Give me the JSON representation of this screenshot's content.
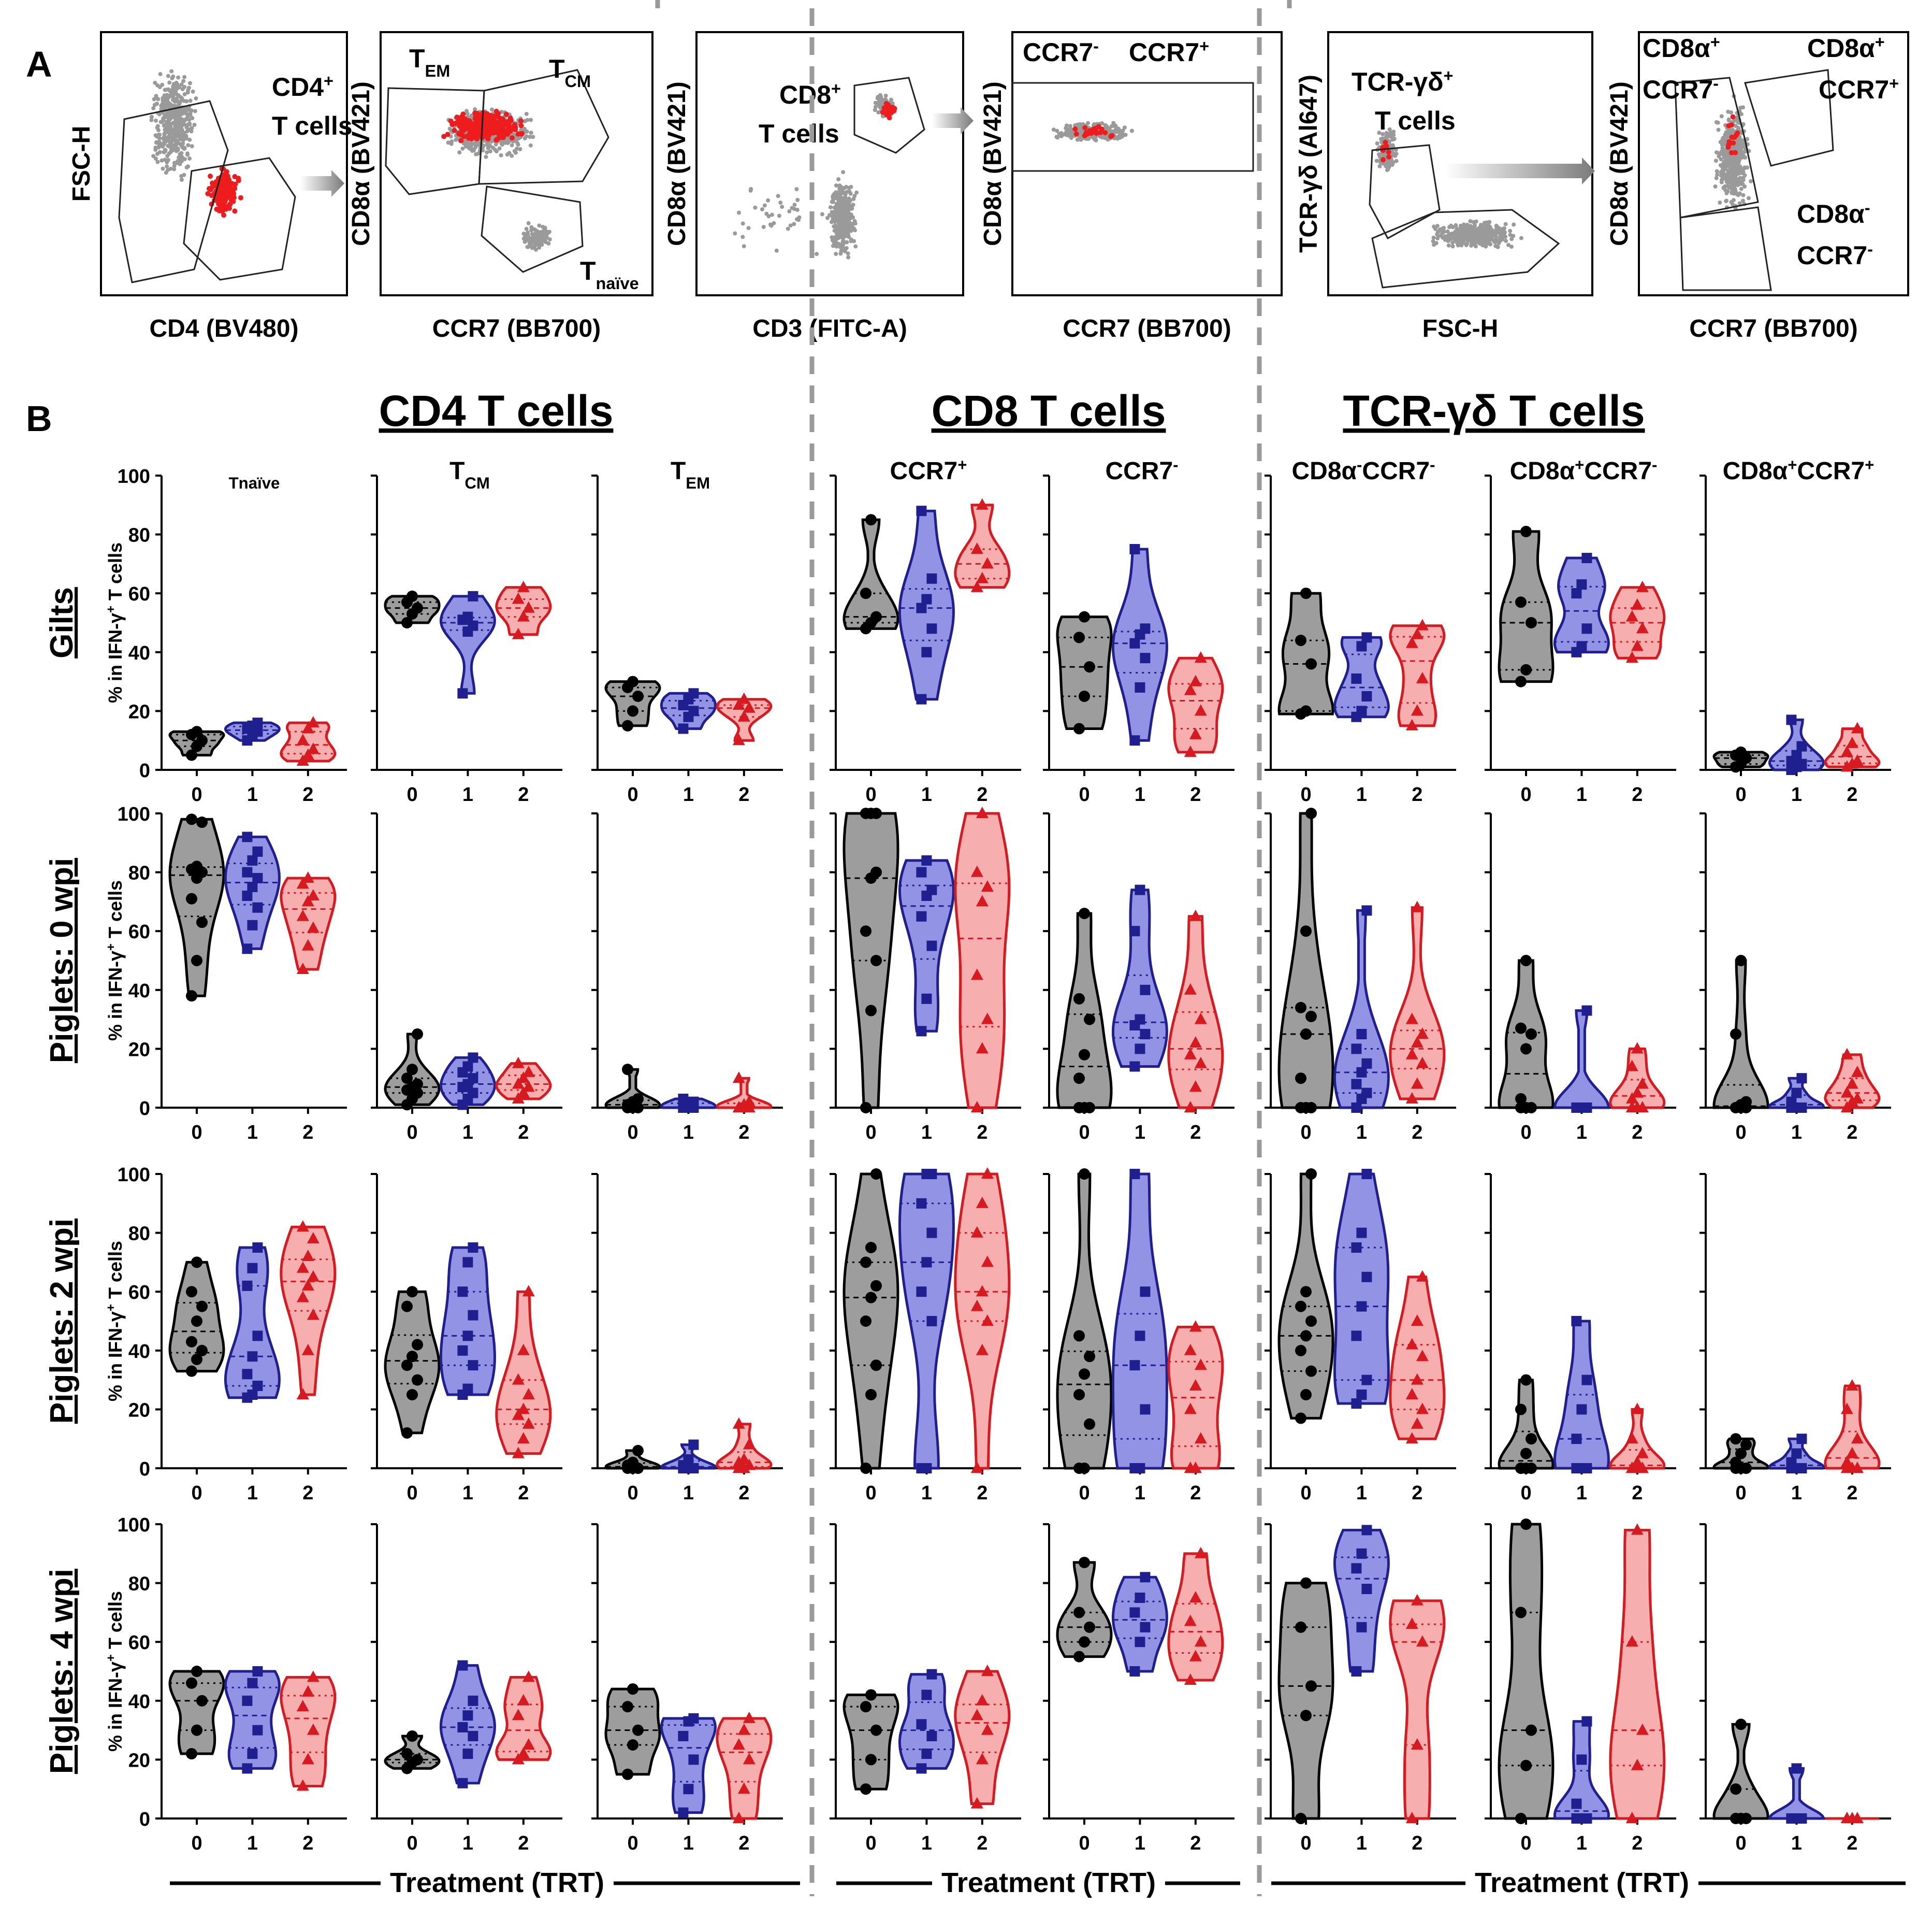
{
  "figure": {
    "panel_a_label": "A",
    "panel_b_label": "B"
  },
  "panel_a": [
    {
      "xlabel": "CD4 (BV480)",
      "ylabel": "FSC-H",
      "gate_labels": [
        {
          "main": "CD4",
          "sup": "+"
        },
        {
          "main": "T cells",
          "sup": ""
        }
      ]
    },
    {
      "xlabel": "CCR7 (BB700)",
      "ylabel": "CD8α (BV421)",
      "gate_labels": [
        {
          "main": "T",
          "sub": "EM"
        },
        {
          "main": "T",
          "sub": "CM"
        },
        {
          "main": "T",
          "sub": "naïve"
        }
      ]
    },
    {
      "xlabel": "CD3 (FITC-A)",
      "ylabel": "CD8α (BV421)",
      "gate_labels": [
        {
          "main": "CD8",
          "sup": "+"
        },
        {
          "main": "T cells",
          "sup": ""
        }
      ]
    },
    {
      "xlabel": "CCR7 (BB700)",
      "ylabel": "CD8α (BV421)",
      "gate_labels": [
        {
          "main": "CCR7",
          "sup": "-"
        },
        {
          "main": "CCR7",
          "sup": "+"
        }
      ]
    },
    {
      "xlabel": "FSC-H",
      "ylabel": "TCR-γδ (Al647)",
      "gate_labels": [
        {
          "main": "TCR-γδ",
          "sup": "+"
        },
        {
          "main": "T cells",
          "sup": ""
        }
      ]
    },
    {
      "xlabel": "CCR7 (BB700)",
      "ylabel": "CD8α (BV421)",
      "gate_labels": [
        {
          "main": "CD8α",
          "sup": "+"
        },
        {
          "main": "CCR7",
          "sup": "-"
        },
        {
          "main": "CD8α",
          "sup": "+"
        },
        {
          "main": "CCR7",
          "sup": "+"
        },
        {
          "main": "CD8α",
          "sup": "-"
        },
        {
          "main": "CCR7",
          "sup": "-"
        }
      ]
    }
  ],
  "panel_b": {
    "group_titles": [
      "CD4 T cells",
      "CD8 T cells",
      "TCR-γδ T cells"
    ],
    "column_titles": [
      [
        {
          "t": "T",
          "s": "sub"
        },
        {
          "t": "naïve",
          "s": "sub"
        }
      ],
      [
        {
          "t": "T",
          "s": ""
        },
        {
          "t": "CM",
          "s": "sub"
        }
      ],
      [
        {
          "t": "T",
          "s": ""
        },
        {
          "t": "EM",
          "s": "sub"
        }
      ],
      [
        {
          "t": "CCR7",
          "s": ""
        },
        {
          "t": "+",
          "s": "sup"
        }
      ],
      [
        {
          "t": "CCR7",
          "s": ""
        },
        {
          "t": "-",
          "s": "sup"
        }
      ],
      [
        {
          "t": "CD8α",
          "s": ""
        },
        {
          "t": "-",
          "s": "sup"
        },
        {
          "t": "CCR7",
          "s": ""
        },
        {
          "t": "-",
          "s": "sup"
        }
      ],
      [
        {
          "t": "CD8α",
          "s": ""
        },
        {
          "t": "+",
          "s": "sup"
        },
        {
          "t": "CCR7",
          "s": ""
        },
        {
          "t": "-",
          "s": "sup"
        }
      ],
      [
        {
          "t": "CD8α",
          "s": ""
        },
        {
          "t": "+",
          "s": "sup"
        },
        {
          "t": "CCR7",
          "s": ""
        },
        {
          "t": "+",
          "s": "sup"
        }
      ]
    ],
    "row_titles": [
      "Gilts",
      "Piglets: 0 wpi",
      "Piglets: 2 wpi",
      "Piglets: 4 wpi"
    ],
    "ylabel_parts": [
      "% in IFN-γ",
      "+",
      " T cells"
    ],
    "xlabel": "Treatment (TRT)"
  },
  "chart_data": {
    "type": "violin",
    "categories": [
      "0",
      "1",
      "2"
    ],
    "ylim": [
      0,
      100
    ],
    "yticks": [
      0,
      20,
      40,
      60,
      80,
      100
    ],
    "series_colors": {
      "0": "#000000",
      "1": "#1f1f8f",
      "2": "#d71920"
    },
    "fill_colors": {
      "0": "#8c8c8c",
      "1": "#8080e0",
      "2": "#f5a0a0"
    },
    "markers": {
      "0": "circle",
      "1": "square",
      "2": "triangle"
    },
    "rows": [
      {
        "title": "Gilts",
        "cells": [
          [
            [
              5,
              8,
              10,
              12,
              13
            ],
            [
              10,
              12,
              13,
              14,
              15,
              16
            ],
            [
              3,
              5,
              7,
              10,
              14,
              16
            ]
          ],
          [
            [
              50,
              53,
              55,
              57,
              59
            ],
            [
              26,
              47,
              49,
              51,
              52,
              59
            ],
            [
              46,
              52,
              55,
              58,
              62
            ]
          ],
          [
            [
              15,
              20,
              25,
              28,
              30
            ],
            [
              14,
              18,
              20,
              22,
              24,
              26
            ],
            [
              10,
              18,
              21,
              22,
              24
            ]
          ],
          [
            [
              48,
              50,
              52,
              60,
              85
            ],
            [
              24,
              40,
              48,
              55,
              58,
              65,
              88
            ],
            [
              62,
              65,
              70,
              75,
              90
            ]
          ],
          [
            [
              14,
              25,
              35,
              45,
              52
            ],
            [
              10,
              28,
              38,
              43,
              46,
              48,
              75
            ],
            [
              6,
              12,
              20,
              27,
              30,
              38
            ]
          ],
          [
            [
              19,
              20,
              36,
              44,
              60
            ],
            [
              18,
              20,
              25,
              31,
              42,
              45
            ],
            [
              15,
              20,
              31,
              43,
              46,
              49
            ]
          ],
          [
            [
              30,
              34,
              50,
              57,
              81
            ],
            [
              40,
              42,
              48,
              60,
              63,
              72
            ],
            [
              38,
              42,
              48,
              52,
              56,
              62
            ]
          ],
          [
            [
              1,
              2,
              4,
              5,
              6
            ],
            [
              0,
              1,
              2,
              3,
              5,
              8,
              17
            ],
            [
              1,
              2,
              3,
              6,
              9,
              14
            ]
          ]
        ]
      },
      {
        "title": "Piglets: 0 wpi",
        "cells": [
          [
            [
              38,
              50,
              63,
              71,
              78,
              80,
              81,
              82,
              97,
              98
            ],
            [
              54,
              62,
              68,
              72,
              75,
              78,
              80,
              84,
              87,
              92
            ],
            [
              47,
              55,
              61,
              65,
              70,
              72,
              76,
              78
            ]
          ],
          [
            [
              1,
              3,
              5,
              6,
              7,
              8,
              10,
              13,
              25
            ],
            [
              1,
              3,
              5,
              7,
              8,
              10,
              12,
              14,
              17
            ],
            [
              3,
              5,
              7,
              8,
              10,
              12,
              15
            ]
          ],
          [
            [
              0,
              0,
              0,
              1,
              2,
              3,
              13
            ],
            [
              0,
              0,
              0,
              0,
              1,
              2,
              3
            ],
            [
              0,
              0,
              0,
              0,
              1,
              2,
              10
            ]
          ],
          [
            [
              0,
              33,
              50,
              60,
              78,
              80,
              100,
              100,
              100
            ],
            [
              26,
              37,
              55,
              65,
              72,
              74,
              80,
              84
            ],
            [
              0,
              20,
              30,
              45,
              70,
              75,
              80,
              100
            ]
          ],
          [
            [
              0,
              0,
              0,
              10,
              18,
              30,
              37,
              66
            ],
            [
              14,
              20,
              25,
              28,
              30,
              40,
              60,
              74
            ],
            [
              0,
              7,
              15,
              18,
              22,
              30,
              40,
              65
            ]
          ],
          [
            [
              0,
              0,
              0,
              10,
              25,
              31,
              34,
              60,
              100
            ],
            [
              0,
              3,
              5,
              8,
              12,
              15,
              20,
              25,
              67
            ],
            [
              3,
              8,
              15,
              18,
              22,
              25,
              30,
              68
            ]
          ],
          [
            [
              0,
              0,
              0,
              3,
              20,
              25,
              27,
              50
            ],
            [
              0,
              0,
              0,
              0,
              0,
              33
            ],
            [
              0,
              0,
              0,
              3,
              5,
              8,
              14,
              20
            ]
          ],
          [
            [
              0,
              0,
              0,
              0,
              1,
              2,
              25,
              50
            ],
            [
              0,
              0,
              0,
              2,
              5,
              10
            ],
            [
              0,
              2,
              3,
              5,
              8,
              12,
              18
            ]
          ]
        ]
      },
      {
        "title": "Piglets: 2 wpi",
        "cells": [
          [
            [
              33,
              37,
              40,
              43,
              50,
              55,
              60,
              70
            ],
            [
              24,
              25,
              28,
              32,
              38,
              45,
              62,
              68,
              75
            ],
            [
              25,
              40,
              52,
              58,
              62,
              65,
              68,
              72,
              78,
              82
            ]
          ],
          [
            [
              12,
              25,
              30,
              35,
              38,
              42,
              55,
              60
            ],
            [
              25,
              27,
              35,
              40,
              45,
              52,
              60,
              70,
              75
            ],
            [
              5,
              10,
              15,
              18,
              20,
              25,
              30,
              40,
              60
            ]
          ],
          [
            [
              0,
              0,
              0,
              1,
              2,
              6
            ],
            [
              0,
              0,
              0,
              1,
              3,
              8
            ],
            [
              0,
              0,
              1,
              2,
              3,
              8,
              15
            ]
          ],
          [
            [
              0,
              25,
              35,
              50,
              58,
              62,
              70,
              75,
              100
            ],
            [
              0,
              0,
              50,
              60,
              70,
              80,
              90,
              100,
              100
            ],
            [
              0,
              40,
              50,
              55,
              60,
              70,
              80,
              90,
              100
            ]
          ],
          [
            [
              0,
              0,
              15,
              25,
              32,
              38,
              45,
              100
            ],
            [
              0,
              0,
              20,
              35,
              45,
              60,
              100
            ],
            [
              0,
              0,
              10,
              20,
              28,
              35,
              40,
              48
            ]
          ],
          [
            [
              17,
              25,
              33,
              40,
              45,
              50,
              55,
              60,
              100
            ],
            [
              22,
              25,
              30,
              45,
              55,
              65,
              75,
              80,
              100
            ],
            [
              10,
              15,
              20,
              25,
              30,
              38,
              42,
              50,
              65
            ]
          ],
          [
            [
              0,
              0,
              0,
              0,
              5,
              10,
              20,
              30
            ],
            [
              0,
              0,
              0,
              10,
              20,
              30,
              50
            ],
            [
              0,
              0,
              0,
              0,
              2,
              5,
              10,
              20
            ]
          ],
          [
            [
              0,
              0,
              0,
              2,
              5,
              8,
              10
            ],
            [
              0,
              0,
              0,
              2,
              5,
              10
            ],
            [
              0,
              0,
              0,
              2,
              5,
              10,
              20,
              28
            ]
          ]
        ]
      },
      {
        "title": "Piglets: 4 wpi",
        "cells": [
          [
            [
              22,
              30,
              40,
              46,
              50
            ],
            [
              17,
              22,
              30,
              40,
              46,
              50
            ],
            [
              11,
              20,
              30,
              38,
              43,
              48
            ]
          ],
          [
            [
              17,
              19,
              20,
              22,
              28
            ],
            [
              12,
              22,
              28,
              31,
              35,
              40,
              52
            ],
            [
              20,
              22,
              25,
              35,
              40,
              48
            ]
          ],
          [
            [
              15,
              25,
              30,
              38,
              44
            ],
            [
              2,
              10,
              20,
              28,
              33,
              34
            ],
            [
              0,
              10,
              20,
              25,
              30,
              34
            ]
          ],
          [
            [
              10,
              20,
              30,
              38,
              42
            ],
            [
              17,
              22,
              28,
              32,
              42,
              49
            ],
            [
              5,
              20,
              30,
              35,
              40,
              50
            ]
          ],
          [
            [
              55,
              60,
              65,
              70,
              87
            ],
            [
              50,
              60,
              65,
              70,
              75,
              82
            ],
            [
              47,
              55,
              60,
              67,
              75,
              90
            ]
          ],
          [
            [
              0,
              35,
              45,
              65,
              80
            ],
            [
              50,
              65,
              78,
              85,
              90,
              98
            ],
            [
              0,
              25,
              60,
              66,
              74
            ]
          ],
          [
            [
              0,
              18,
              30,
              70,
              100
            ],
            [
              0,
              0,
              0,
              5,
              20,
              33
            ],
            [
              0,
              18,
              30,
              60,
              98
            ]
          ],
          [
            [
              0,
              0,
              0,
              10,
              32
            ],
            [
              0,
              0,
              0,
              0,
              17
            ],
            [
              0,
              0,
              0,
              0
            ]
          ]
        ]
      }
    ]
  }
}
